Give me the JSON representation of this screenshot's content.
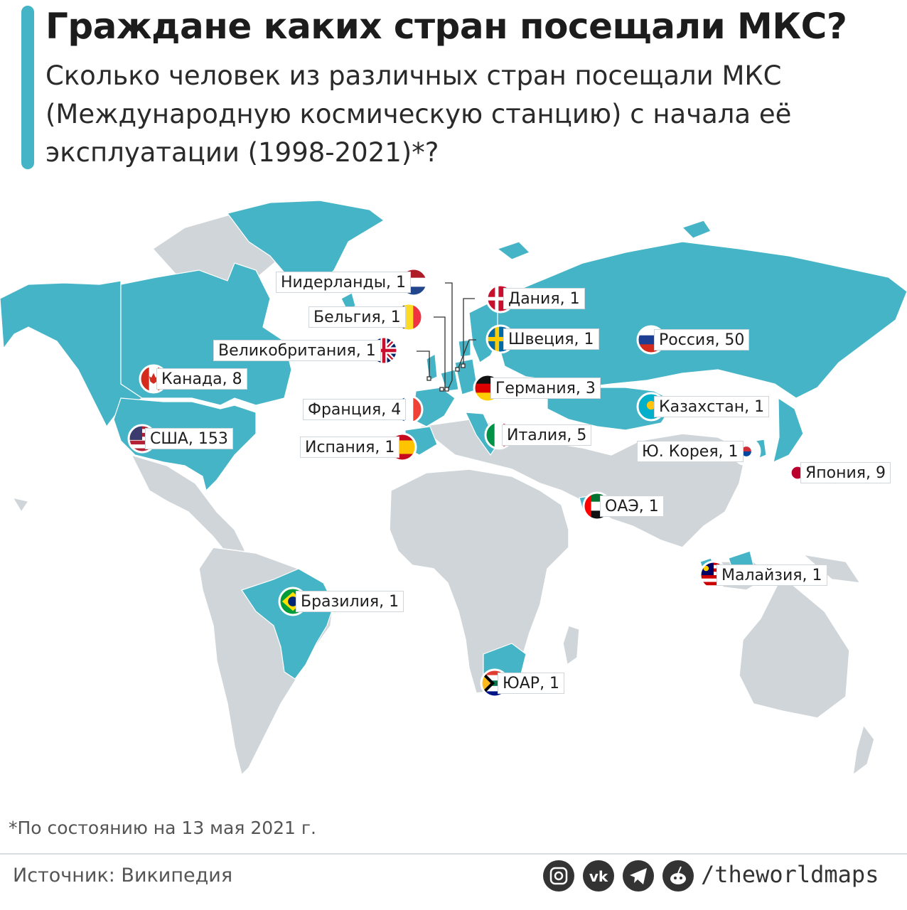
{
  "title": "Граждане каких стран посещали МКС?",
  "subtitle": "Сколько человек из различных стран посещали МКС (Международную космическую станцию) с начала её эксплуатации (1998-2021)*?",
  "colors": {
    "highlight_country": "#45b4c6",
    "other_land": "#cfd5d8",
    "accent_bar": "#45b4c6"
  },
  "countries": [
    {
      "id": "usa",
      "text": "США, 153",
      "name": "США",
      "count": 153,
      "flag": "usa"
    },
    {
      "id": "russia",
      "text": "Россия, 50",
      "name": "Россия",
      "count": 50,
      "flag": "russia"
    },
    {
      "id": "japan",
      "text": "Япония, 9",
      "name": "Япония",
      "count": 9,
      "flag": "japan"
    },
    {
      "id": "canada",
      "text": "Канада, 8",
      "name": "Канада",
      "count": 8,
      "flag": "canada"
    },
    {
      "id": "italy",
      "text": "Италия, 5",
      "name": "Италия",
      "count": 5,
      "flag": "italy"
    },
    {
      "id": "france",
      "text": "Франция, 4",
      "name": "Франция",
      "count": 4,
      "flag": "france"
    },
    {
      "id": "germany",
      "text": "Германия, 3",
      "name": "Германия",
      "count": 3,
      "flag": "germany"
    },
    {
      "id": "netherlands",
      "text": "Нидерланды, 1",
      "name": "Нидерланды",
      "count": 1,
      "flag": "netherlands"
    },
    {
      "id": "belgium",
      "text": "Бельгия, 1",
      "name": "Бельгия",
      "count": 1,
      "flag": "belgium"
    },
    {
      "id": "uk",
      "text": "Великобритания, 1",
      "name": "Великобритания",
      "count": 1,
      "flag": "uk"
    },
    {
      "id": "denmark",
      "text": "Дания, 1",
      "name": "Дания",
      "count": 1,
      "flag": "denmark"
    },
    {
      "id": "sweden",
      "text": "Швеция, 1",
      "name": "Швеция",
      "count": 1,
      "flag": "sweden"
    },
    {
      "id": "spain",
      "text": "Испания, 1",
      "name": "Испания",
      "count": 1,
      "flag": "spain"
    },
    {
      "id": "kazakhstan",
      "text": "Казахстан, 1",
      "name": "Казахстан",
      "count": 1,
      "flag": "kazakhstan"
    },
    {
      "id": "korea",
      "text": "Ю. Корея, 1",
      "name": "Ю. Корея",
      "count": 1,
      "flag": "south-korea"
    },
    {
      "id": "uae",
      "text": "ОАЭ, 1",
      "name": "ОАЭ",
      "count": 1,
      "flag": "uae"
    },
    {
      "id": "malaysia",
      "text": "Малайзия, 1",
      "name": "Малайзия",
      "count": 1,
      "flag": "malaysia"
    },
    {
      "id": "brazil",
      "text": "Бразилия, 1",
      "name": "Бразилия",
      "count": 1,
      "flag": "brazil"
    },
    {
      "id": "south_africa",
      "text": "ЮАР, 1",
      "name": "ЮАР",
      "count": 1,
      "flag": "south-africa"
    }
  ],
  "footnote": "*По состоянию на 13 мая 2021 г.",
  "source": "Источник: Википедия",
  "social": {
    "icons": [
      "instagram-icon",
      "vk-icon",
      "telegram-icon",
      "reddit-icon"
    ],
    "handle": "/theworldmaps"
  }
}
